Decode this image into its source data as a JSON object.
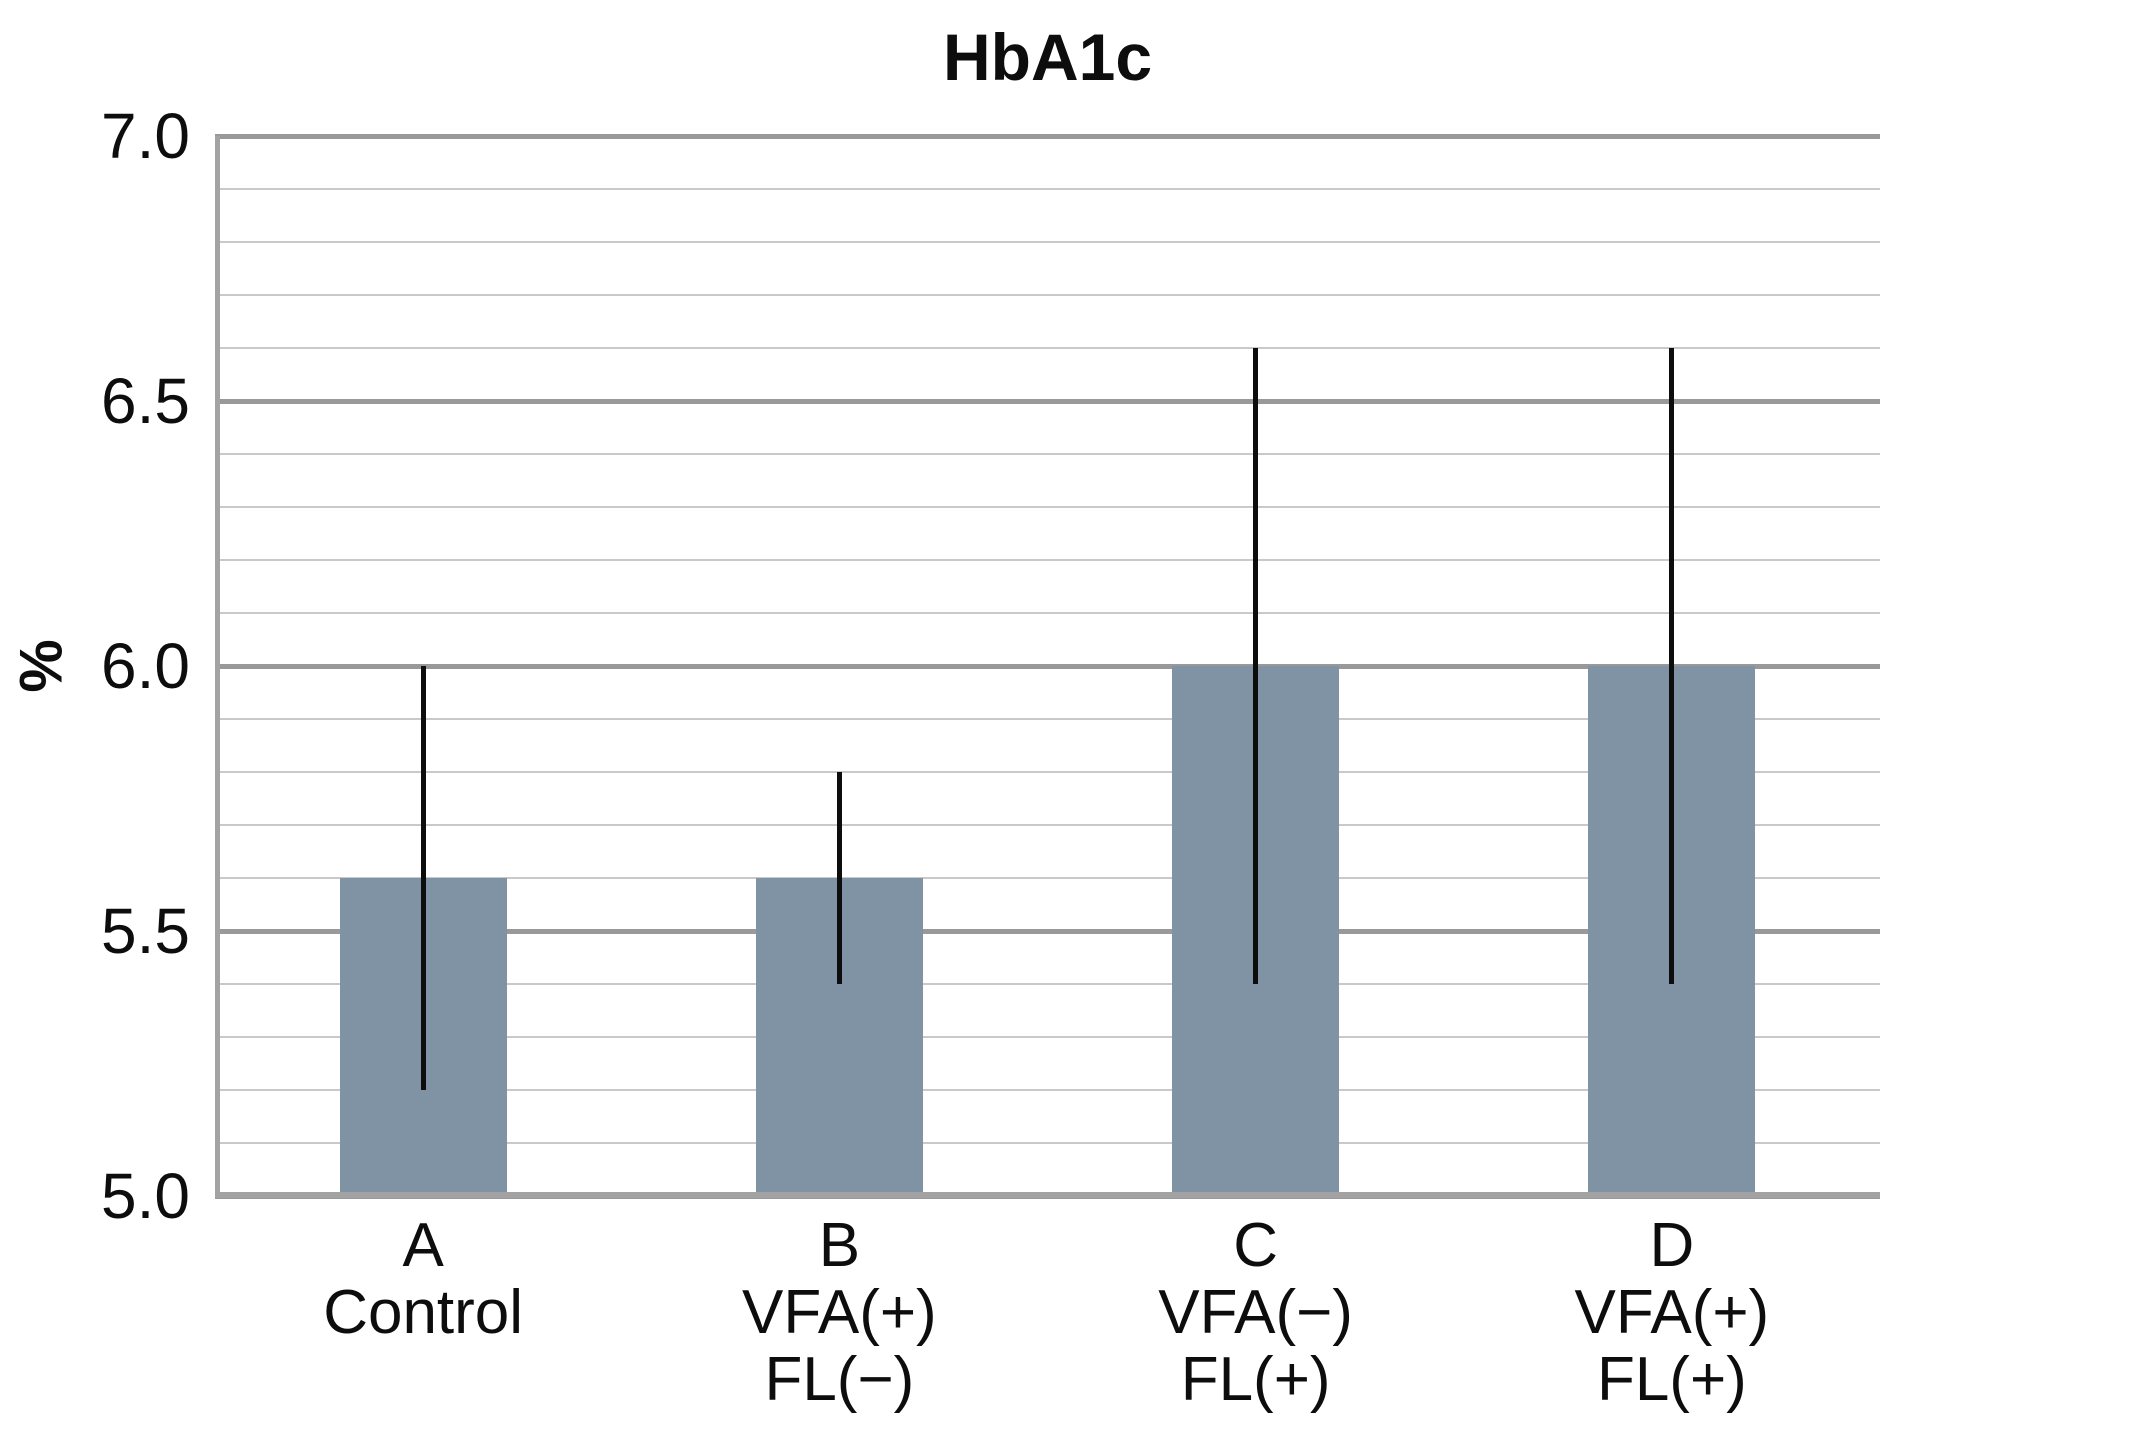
{
  "chart_data": {
    "type": "bar",
    "title": "HbA1c",
    "ylabel": "%",
    "xlabel": "",
    "ylim": [
      5.0,
      7.0
    ],
    "y_major_step": 0.5,
    "y_minor_step": 0.1,
    "y_tick_labels": [
      "5.0",
      "5.5",
      "6.0",
      "6.5",
      "7.0"
    ],
    "grid": true,
    "legend": false,
    "categories": [
      {
        "lines": [
          "A",
          "Control"
        ]
      },
      {
        "lines": [
          "B",
          "VFA(+)",
          "FL(−)"
        ]
      },
      {
        "lines": [
          "C",
          "VFA(−)",
          "FL(+)"
        ]
      },
      {
        "lines": [
          "D",
          "VFA(+)",
          "FL(+)"
        ]
      }
    ],
    "series": [
      {
        "name": "HbA1c",
        "values": [
          5.6,
          5.6,
          6.0,
          6.0
        ],
        "error_low": [
          5.2,
          5.4,
          5.4,
          5.4
        ],
        "error_high": [
          6.0,
          5.8,
          6.6,
          6.6
        ]
      }
    ],
    "colors": {
      "bar": "#8093a4",
      "error_bar": "#0d0d0d",
      "grid_major": "#999999",
      "grid_minor": "#c9c9c9",
      "axis": "#a3a3a3",
      "text": "#0d0d0d",
      "background": "#ffffff"
    }
  }
}
